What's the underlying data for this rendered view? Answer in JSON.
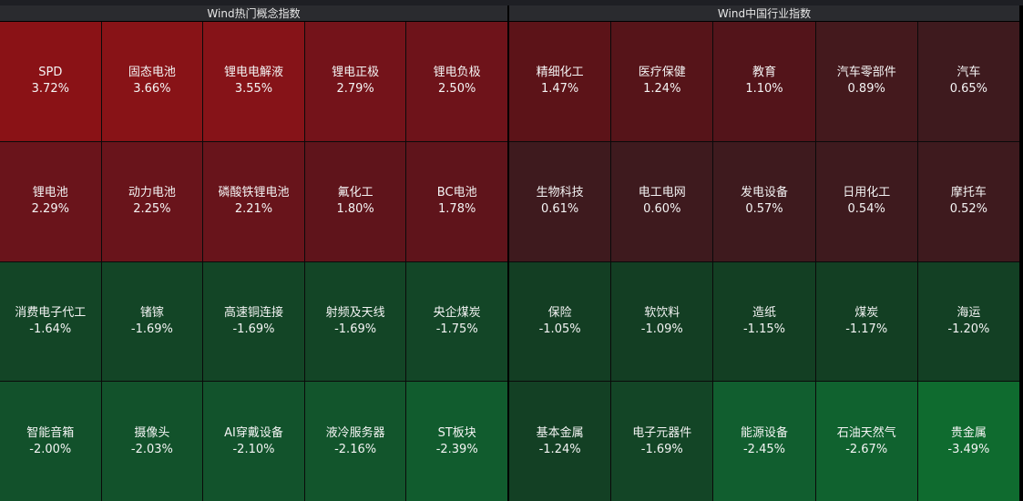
{
  "panels": [
    {
      "title": "Wind热门概念指数",
      "tiles": [
        {
          "name": "SPD",
          "pct": "3.72%",
          "color": "#8a1216"
        },
        {
          "name": "固态电池",
          "pct": "3.66%",
          "color": "#881317"
        },
        {
          "name": "锂电电解液",
          "pct": "3.55%",
          "color": "#861318"
        },
        {
          "name": "锂电正极",
          "pct": "2.79%",
          "color": "#74131a"
        },
        {
          "name": "锂电负极",
          "pct": "2.50%",
          "color": "#6e131a"
        },
        {
          "name": "锂电池",
          "pct": "2.29%",
          "color": "#6a141b"
        },
        {
          "name": "动力电池",
          "pct": "2.25%",
          "color": "#69141b"
        },
        {
          "name": "磷酸铁锂电池",
          "pct": "2.21%",
          "color": "#68141b"
        },
        {
          "name": "氟化工",
          "pct": "1.80%",
          "color": "#5f141b"
        },
        {
          "name": "BC电池",
          "pct": "1.78%",
          "color": "#5f141b"
        },
        {
          "name": "消费电子代工",
          "pct": "-1.64%",
          "color": "#134526"
        },
        {
          "name": "锗镓",
          "pct": "-1.69%",
          "color": "#134526"
        },
        {
          "name": "高速铜连接",
          "pct": "-1.69%",
          "color": "#134526"
        },
        {
          "name": "射频及天线",
          "pct": "-1.69%",
          "color": "#134526"
        },
        {
          "name": "央企煤炭",
          "pct": "-1.75%",
          "color": "#134627"
        },
        {
          "name": "智能音箱",
          "pct": "-2.00%",
          "color": "#12512b"
        },
        {
          "name": "摄像头",
          "pct": "-2.03%",
          "color": "#12522b"
        },
        {
          "name": "AI穿戴设备",
          "pct": "-2.10%",
          "color": "#12532c"
        },
        {
          "name": "液冷服务器",
          "pct": "-2.16%",
          "color": "#12552c"
        },
        {
          "name": "ST板块",
          "pct": "-2.39%",
          "color": "#115c2e"
        }
      ]
    },
    {
      "title": "Wind中国行业指数",
      "tiles": [
        {
          "name": "精细化工",
          "pct": "1.47%",
          "color": "#5c1318"
        },
        {
          "name": "医疗保健",
          "pct": "1.24%",
          "color": "#561419"
        },
        {
          "name": "教育",
          "pct": "1.10%",
          "color": "#53141a"
        },
        {
          "name": "汽车零部件",
          "pct": "0.89%",
          "color": "#44191d"
        },
        {
          "name": "汽车",
          "pct": "0.65%",
          "color": "#3e1a1e"
        },
        {
          "name": "生物科技",
          "pct": "0.61%",
          "color": "#3e1a1e"
        },
        {
          "name": "电工电网",
          "pct": "0.60%",
          "color": "#3e1a1e"
        },
        {
          "name": "发电设备",
          "pct": "0.57%",
          "color": "#3e1a1e"
        },
        {
          "name": "日用化工",
          "pct": "0.54%",
          "color": "#3e1a1e"
        },
        {
          "name": "摩托车",
          "pct": "0.52%",
          "color": "#3e1a1e"
        },
        {
          "name": "保险",
          "pct": "-1.05%",
          "color": "#133e23"
        },
        {
          "name": "软饮料",
          "pct": "-1.09%",
          "color": "#133e23"
        },
        {
          "name": "造纸",
          "pct": "-1.15%",
          "color": "#133f23"
        },
        {
          "name": "煤炭",
          "pct": "-1.17%",
          "color": "#133f23"
        },
        {
          "name": "海运",
          "pct": "-1.20%",
          "color": "#134024"
        },
        {
          "name": "基本金属",
          "pct": "-1.24%",
          "color": "#134024"
        },
        {
          "name": "电子元器件",
          "pct": "-1.69%",
          "color": "#134526"
        },
        {
          "name": "能源设备",
          "pct": "-2.45%",
          "color": "#115e2f"
        },
        {
          "name": "石油天然气",
          "pct": "-2.67%",
          "color": "#10622f"
        },
        {
          "name": "贵金属",
          "pct": "-3.49%",
          "color": "#0f6b2f"
        }
      ]
    }
  ]
}
